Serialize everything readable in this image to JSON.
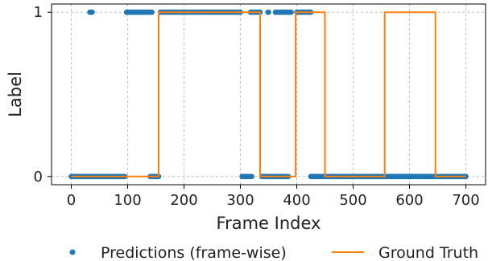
{
  "chart_data": {
    "type": "scatter",
    "xlabel": "Frame Index",
    "ylabel": "Label",
    "xlim": [
      -35,
      735
    ],
    "ylim": [
      -0.05,
      1.05
    ],
    "xticks": [
      0,
      100,
      200,
      300,
      400,
      500,
      600,
      700
    ],
    "yticks": [
      0,
      1
    ],
    "grid": true,
    "legend_position": "bottom",
    "series": [
      {
        "name": "Predictions (frame-wise)",
        "kind": "points",
        "color": "#1f77b4",
        "segments": [
          {
            "y": 0,
            "x_start": 0,
            "x_end": 95
          },
          {
            "y": 1,
            "x_start": 33,
            "x_end": 37
          },
          {
            "y": 1,
            "x_start": 98,
            "x_end": 143
          },
          {
            "y": 0,
            "x_start": 140,
            "x_end": 155
          },
          {
            "y": 1,
            "x_start": 158,
            "x_end": 300
          },
          {
            "y": 0,
            "x_start": 303,
            "x_end": 320
          },
          {
            "y": 1,
            "x_start": 318,
            "x_end": 335
          },
          {
            "y": 1,
            "x_start": 349,
            "x_end": 350
          },
          {
            "y": 0,
            "x_start": 338,
            "x_end": 385
          },
          {
            "y": 1,
            "x_start": 362,
            "x_end": 390
          },
          {
            "y": 1,
            "x_start": 400,
            "x_end": 425
          },
          {
            "y": 0,
            "x_start": 425,
            "x_end": 700
          }
        ]
      },
      {
        "name": "Ground Truth",
        "kind": "step",
        "color": "#ff7f0e",
        "x": [
          0,
          155,
          155,
          335,
          335,
          398,
          398,
          450,
          450,
          556,
          556,
          646,
          646,
          700
        ],
        "y": [
          0,
          0,
          1,
          1,
          0,
          0,
          1,
          1,
          0,
          0,
          1,
          1,
          0,
          0
        ]
      }
    ]
  }
}
